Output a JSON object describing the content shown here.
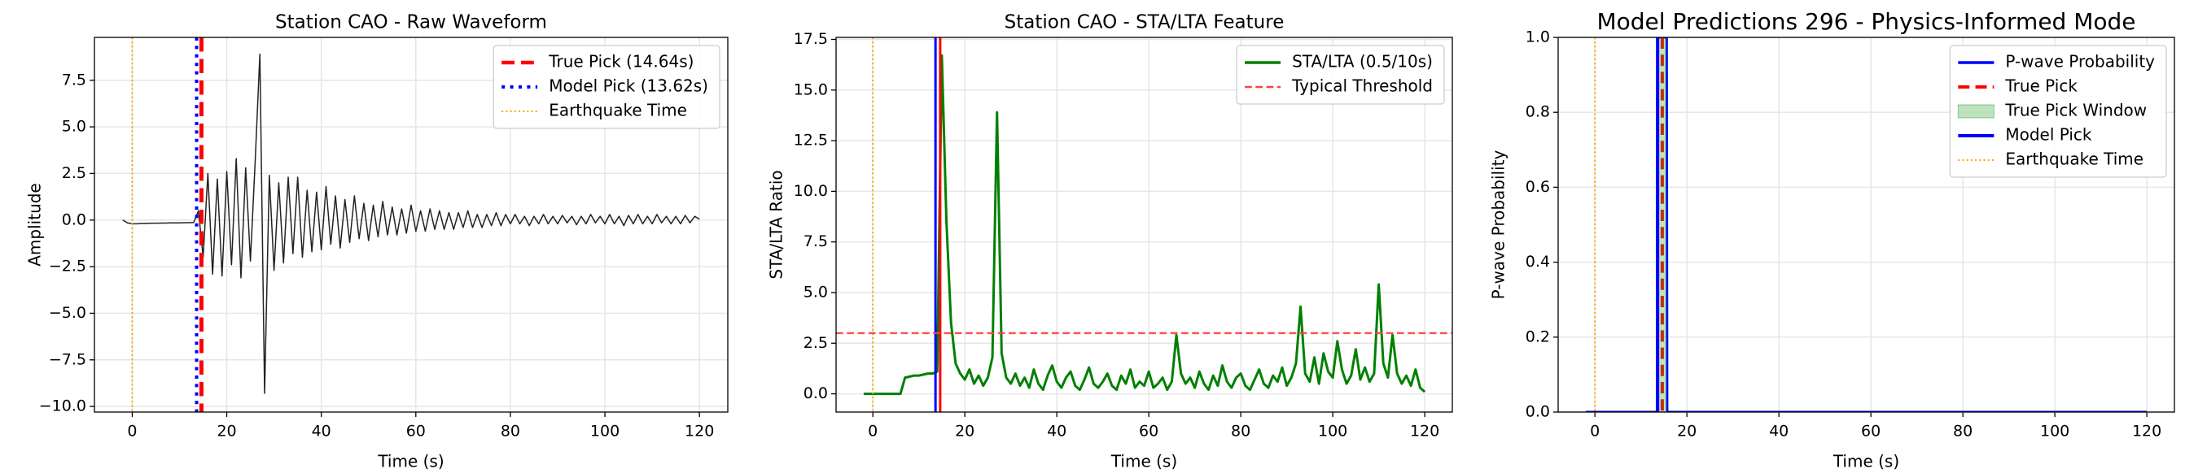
{
  "chart_data": [
    {
      "type": "line",
      "title": "Station CAO - Raw Waveform",
      "xlabel": "Time (s)",
      "ylabel": "Amplitude",
      "xlim": [
        -8,
        126
      ],
      "ylim": [
        -10.3,
        9.8
      ],
      "xticks": [
        0,
        20,
        40,
        60,
        80,
        100,
        120
      ],
      "yticks": [
        {
          "value": -10,
          "label": "−10.0"
        },
        {
          "value": -7.5,
          "label": "−7.5"
        },
        {
          "value": -5,
          "label": "−5.0"
        },
        {
          "value": -2.5,
          "label": "−2.5"
        },
        {
          "value": 0,
          "label": "0.0"
        },
        2.5,
        {
          "value": 5,
          "label": "5.0"
        },
        7.5
      ],
      "grid": true,
      "legend": "upper right",
      "x": [
        -2,
        -1,
        0,
        1,
        2,
        3,
        4,
        5,
        6,
        7,
        8,
        9,
        10,
        11,
        12,
        13,
        14,
        15,
        16,
        17,
        18,
        19,
        20,
        21,
        22,
        23,
        24,
        25,
        26,
        27,
        28,
        29,
        30,
        31,
        32,
        33,
        34,
        35,
        36,
        37,
        38,
        39,
        40,
        41,
        42,
        43,
        44,
        45,
        46,
        47,
        48,
        49,
        50,
        51,
        52,
        53,
        54,
        55,
        56,
        57,
        58,
        59,
        60,
        61,
        62,
        63,
        64,
        65,
        66,
        67,
        68,
        69,
        70,
        71,
        72,
        73,
        74,
        75,
        76,
        77,
        78,
        79,
        80,
        81,
        82,
        83,
        84,
        85,
        86,
        87,
        88,
        89,
        90,
        91,
        92,
        93,
        94,
        95,
        96,
        97,
        98,
        99,
        100,
        101,
        102,
        103,
        104,
        105,
        106,
        107,
        108,
        109,
        110,
        111,
        112,
        113,
        114,
        115,
        116,
        117,
        118,
        119,
        120
      ],
      "series": [
        {
          "color": "#222222",
          "values": [
            0,
            -0.15,
            -0.2,
            -0.2,
            -0.18,
            -0.18,
            -0.17,
            -0.17,
            -0.16,
            -0.16,
            -0.15,
            -0.15,
            -0.15,
            -0.14,
            -0.14,
            -0.13,
            0.5,
            -2.0,
            2.5,
            -2.9,
            2.2,
            -3.0,
            2.6,
            -2.4,
            3.3,
            -3.1,
            2.8,
            -2.2,
            3.1,
            8.9,
            -9.3,
            2.4,
            -2.7,
            2.0,
            -2.3,
            2.3,
            -1.8,
            2.3,
            -2.0,
            1.6,
            -1.7,
            1.5,
            -1.6,
            1.8,
            -1.3,
            1.3,
            -1.5,
            1.1,
            -1.2,
            1.3,
            -1.0,
            0.9,
            -1.1,
            0.8,
            -0.9,
            1.0,
            -0.8,
            0.7,
            -0.8,
            0.6,
            -0.7,
            0.8,
            -0.6,
            0.5,
            -0.6,
            0.6,
            -0.5,
            0.5,
            -0.5,
            0.4,
            -0.5,
            0.4,
            -0.4,
            0.5,
            -0.4,
            0.3,
            -0.4,
            0.3,
            -0.3,
            0.4,
            -0.3,
            0.3,
            -0.2,
            0.3,
            -0.2,
            0.2,
            -0.3,
            0.2,
            -0.2,
            0.3,
            -0.2,
            0.2,
            -0.2,
            0.25,
            -0.15,
            0.2,
            -0.25,
            0.2,
            -0.2,
            0.3,
            -0.15,
            0.2,
            -0.2,
            0.3,
            -0.2,
            0.2,
            -0.3,
            0.25,
            -0.2,
            0.3,
            -0.2,
            0.2,
            -0.2,
            0.3,
            -0.15,
            0.2,
            -0.2,
            0.2,
            -0.2,
            0.25,
            -0.15,
            0.2,
            0.05
          ]
        }
      ],
      "overlays": [
        {
          "kind": "vline",
          "name": "True Pick (14.64s)",
          "x": 14.64,
          "color": "#ff0000",
          "style": "dashed",
          "width": 5
        },
        {
          "kind": "vline",
          "name": "Model Pick (13.62s)",
          "x": 13.62,
          "color": "#0000ff",
          "style": "dotted",
          "width": 4
        },
        {
          "kind": "vline",
          "name": "Earthquake Time",
          "x": 0,
          "color": "#ffa500",
          "style": "dotted",
          "width": 2
        }
      ]
    },
    {
      "type": "line",
      "title": "Station CAO - STA/LTA Feature",
      "xlabel": "Time (s)",
      "ylabel": "STA/LTA Ratio",
      "xlim": [
        -8,
        126
      ],
      "ylim": [
        -0.9,
        17.6
      ],
      "xticks": [
        0,
        20,
        40,
        60,
        80,
        100,
        120
      ],
      "yticks": [
        {
          "value": 0,
          "label": "0.0"
        },
        2.5,
        {
          "value": 5,
          "label": "5.0"
        },
        7.5,
        {
          "value": 10,
          "label": "10.0"
        },
        12.5,
        {
          "value": 15,
          "label": "15.0"
        },
        17.5
      ],
      "grid": true,
      "legend": "upper right",
      "x": [
        -2,
        -1,
        0,
        1,
        2,
        3,
        4,
        5,
        6,
        7,
        8,
        9,
        10,
        11,
        12,
        13,
        14,
        15,
        16,
        17,
        18,
        19,
        20,
        21,
        22,
        23,
        24,
        25,
        26,
        27,
        28,
        29,
        30,
        31,
        32,
        33,
        34,
        35,
        36,
        37,
        38,
        39,
        40,
        41,
        42,
        43,
        44,
        45,
        46,
        47,
        48,
        49,
        50,
        51,
        52,
        53,
        54,
        55,
        56,
        57,
        58,
        59,
        60,
        61,
        62,
        63,
        64,
        65,
        66,
        67,
        68,
        69,
        70,
        71,
        72,
        73,
        74,
        75,
        76,
        77,
        78,
        79,
        80,
        81,
        82,
        83,
        84,
        85,
        86,
        87,
        88,
        89,
        90,
        91,
        92,
        93,
        94,
        95,
        96,
        97,
        98,
        99,
        100,
        101,
        102,
        103,
        104,
        105,
        106,
        107,
        108,
        109,
        110,
        111,
        112,
        113,
        114,
        115,
        116,
        117,
        118,
        119,
        120
      ],
      "series": [
        {
          "name": "STA/LTA (0.5/10s)",
          "color": "#008000",
          "values": [
            0,
            0,
            0,
            0,
            0,
            0,
            0,
            0,
            0,
            0.8,
            0.85,
            0.9,
            0.9,
            0.95,
            1.0,
            1.0,
            1.1,
            16.7,
            8.5,
            3.5,
            1.5,
            1.0,
            0.7,
            1.2,
            0.5,
            0.9,
            0.4,
            0.8,
            1.8,
            13.9,
            2.0,
            0.8,
            0.5,
            1.0,
            0.4,
            0.8,
            0.3,
            1.2,
            0.5,
            0.2,
            0.9,
            1.4,
            0.6,
            0.3,
            0.8,
            1.1,
            0.4,
            0.2,
            0.7,
            1.3,
            0.5,
            0.3,
            0.6,
            1.0,
            0.4,
            0.2,
            0.9,
            0.5,
            1.2,
            0.3,
            0.6,
            0.4,
            1.1,
            0.3,
            0.5,
            0.8,
            0.2,
            0.6,
            2.9,
            1.0,
            0.5,
            0.8,
            0.3,
            1.1,
            0.5,
            0.2,
            0.9,
            0.4,
            1.4,
            0.6,
            0.3,
            0.8,
            1.0,
            0.4,
            0.2,
            0.7,
            1.2,
            0.5,
            0.3,
            0.9,
            0.6,
            1.3,
            0.4,
            0.8,
            1.5,
            4.3,
            1.0,
            0.6,
            1.8,
            0.5,
            2.0,
            1.1,
            0.8,
            2.6,
            1.2,
            0.5,
            0.9,
            2.2,
            0.7,
            1.3,
            0.6,
            1.0,
            5.4,
            1.5,
            0.8,
            2.9,
            1.0,
            0.5,
            0.9,
            0.4,
            1.2,
            0.3,
            0.1
          ]
        }
      ],
      "overlays": [
        {
          "kind": "vline",
          "x": 13.62,
          "color": "#0000ff",
          "style": "solid",
          "width": 3
        },
        {
          "kind": "vline",
          "x": 14.64,
          "color": "#ff0000",
          "style": "solid",
          "width": 3
        },
        {
          "kind": "vline",
          "x": 0,
          "color": "#ffa500",
          "style": "dotted",
          "width": 2
        },
        {
          "kind": "hline",
          "name": "Typical Threshold",
          "y": 3,
          "color": "#ff4040",
          "style": "dashed",
          "width": 2.5
        }
      ]
    },
    {
      "type": "line",
      "title": "Model Predictions 296 - Physics-Informed Mode",
      "xlabel": "Time (s)",
      "ylabel": "P-wave Probability",
      "xlim": [
        -8,
        126
      ],
      "ylim": [
        0,
        1
      ],
      "xticks": [
        0,
        20,
        40,
        60,
        80,
        100,
        120
      ],
      "yticks": [
        {
          "value": 0,
          "label": "0.0"
        },
        0.2,
        0.4,
        0.6,
        0.8,
        {
          "value": 1,
          "label": "1.0"
        }
      ],
      "grid": true,
      "legend": "upper right",
      "series": [
        {
          "name": "P-wave Probability",
          "color": "#0000ff",
          "x": [
            -2,
            13.5,
            13.6,
            15.6,
            15.7,
            120
          ],
          "values": [
            0,
            0,
            1,
            1,
            0,
            0
          ]
        }
      ],
      "overlays": [
        {
          "kind": "vline",
          "name": "True Pick",
          "x": 14.64,
          "color": "#ff0000",
          "style": "dashed",
          "width": 4
        },
        {
          "kind": "span",
          "name": "True Pick Window",
          "x": [
            13.64,
            15.64
          ],
          "color": "#2ca02c"
        },
        {
          "kind": "vline",
          "name": "Model Pick",
          "x": 13.62,
          "color": "#0000ff",
          "style": "solid",
          "width": 4
        },
        {
          "kind": "vline",
          "name": "Earthquake Time",
          "x": 0,
          "color": "#ffa500",
          "style": "dotted",
          "width": 2
        }
      ]
    }
  ]
}
